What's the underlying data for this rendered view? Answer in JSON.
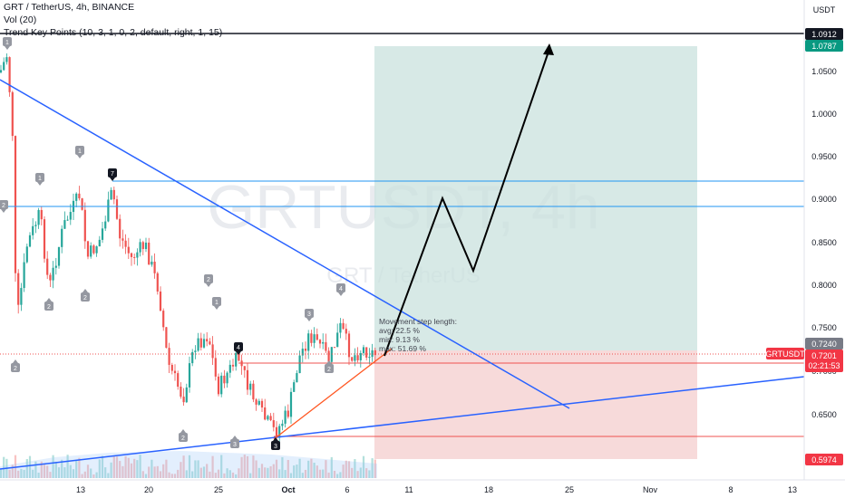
{
  "header": {
    "symbol_line": "GRT / TetherUS, 4h, BINANCE",
    "vol_line": "Vol (20)",
    "indicator_line": "Trend Key Points (10, 3, 1, 0, 2, default, right, 1, 15)"
  },
  "watermark": {
    "main": "GRTUSDT, 4h",
    "sub": "GRT / TetherUS"
  },
  "axis": {
    "currency": "USDT",
    "y_ticks": [
      "1.0500",
      "1.0000",
      "0.9500",
      "0.9000",
      "0.8500",
      "0.8000",
      "0.7500",
      "0.7000",
      "0.6500"
    ],
    "x_ticks": [
      "13",
      "20",
      "25",
      "Oct",
      "6",
      "11",
      "18",
      "25",
      "Nov",
      "8",
      "13"
    ]
  },
  "price_tags": {
    "top_line": "1.0912",
    "target": "1.0787",
    "entry": "0.7240",
    "symbol_tag": "GRTUSDT",
    "current": "0.7201",
    "countdown": "02:21:53",
    "stop": "0.5974"
  },
  "stats": {
    "title": "Movement step length:",
    "avg": "avg: 22.5 %",
    "min": "min: 9.13 %",
    "max": "max: 51.69 %"
  },
  "pivots": [
    {
      "label": "1",
      "kind": "gray",
      "x": 8,
      "y": 46,
      "dir": "up"
    },
    {
      "label": "2",
      "kind": "gray",
      "x": 4,
      "y": 226,
      "dir": "up"
    },
    {
      "label": "1",
      "kind": "gray",
      "x": 44,
      "y": 196,
      "dir": "up"
    },
    {
      "label": "1",
      "kind": "gray",
      "x": 88,
      "y": 166,
      "dir": "up"
    },
    {
      "label": "7",
      "kind": "dark",
      "x": 124,
      "y": 191,
      "dir": "up"
    },
    {
      "label": "2",
      "kind": "gray",
      "x": 17,
      "y": 406,
      "dir": "down"
    },
    {
      "label": "2",
      "kind": "gray",
      "x": 54,
      "y": 338,
      "dir": "down"
    },
    {
      "label": "2",
      "kind": "gray",
      "x": 94,
      "y": 328,
      "dir": "down"
    },
    {
      "label": "2",
      "kind": "gray",
      "x": 230,
      "y": 308,
      "dir": "up"
    },
    {
      "label": "4",
      "kind": "dark",
      "x": 263,
      "y": 383,
      "dir": "up"
    },
    {
      "label": "2",
      "kind": "gray",
      "x": 202,
      "y": 483,
      "dir": "down"
    },
    {
      "label": "3",
      "kind": "gray",
      "x": 259,
      "y": 490,
      "dir": "down"
    },
    {
      "label": "3",
      "kind": "dark",
      "x": 304,
      "y": 492,
      "dir": "down"
    },
    {
      "label": "3",
      "kind": "gray",
      "x": 341,
      "y": 346,
      "dir": "up"
    },
    {
      "label": "4",
      "kind": "gray",
      "x": 376,
      "y": 318,
      "dir": "up"
    },
    {
      "label": "2",
      "kind": "gray",
      "x": 363,
      "y": 407,
      "dir": "down"
    },
    {
      "label": "1",
      "kind": "gray",
      "x": 239,
      "y": 333,
      "dir": "up"
    }
  ],
  "colors": {
    "bull": "#26a69a",
    "bear": "#ef5350",
    "trend_blue": "#2962ff",
    "profit_zone": "#c9e1de",
    "loss_zone": "#f6d3d3",
    "target_tag": "#089981",
    "loss_tag": "#f23645"
  }
}
